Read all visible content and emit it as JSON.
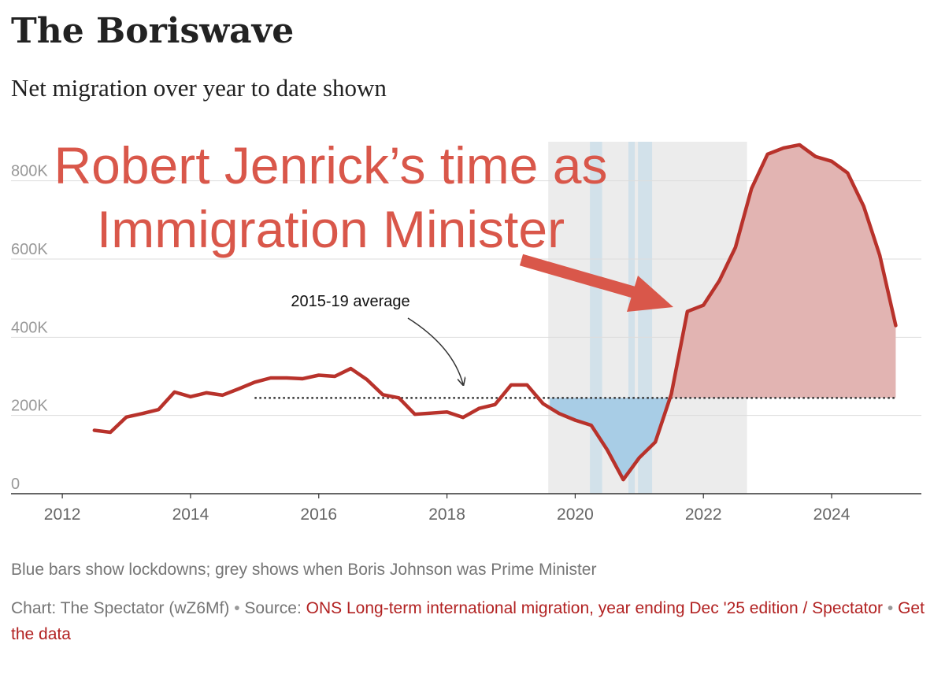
{
  "header": {
    "title": "The Boriswave",
    "subtitle": "Net migration over year to date shown"
  },
  "annotation": {
    "callout": [
      "Robert Jenrick’s time as",
      "Immigration Minister"
    ],
    "average_label": "2015-19 average"
  },
  "footer": {
    "note": "Blue bars show lockdowns; grey shows when Boris Johnson was Prime Minister",
    "chart_credit": "Chart: The Spectator (wZ6Mf)",
    "separator": "•",
    "source_prefix": "Source:",
    "source_link": "ONS Long-term international migration, year ending Dec '25 edition / Spectator",
    "data_link": "Get the data"
  },
  "colors": {
    "line": "#b8322b",
    "above_fill": "#e2b4b2",
    "below_fill": "#a8cde6",
    "pm_shade": "#ececec",
    "lockdown": "#d2e1ea",
    "callout": "#d9574a",
    "gridline": "#dddddd",
    "tick_label": "#999999"
  },
  "chart_data": {
    "type": "area",
    "x_unit": "year",
    "xlim": [
      2011.2,
      2025.4
    ],
    "ylim": [
      0,
      900000
    ],
    "x_ticks": [
      {
        "value": 2012,
        "label": "2012"
      },
      {
        "value": 2014,
        "label": "2014"
      },
      {
        "value": 2016,
        "label": "2016"
      },
      {
        "value": 2018,
        "label": "2018"
      },
      {
        "value": 2020,
        "label": "2020"
      },
      {
        "value": 2022,
        "label": "2022"
      },
      {
        "value": 2024,
        "label": "2024"
      }
    ],
    "y_ticks": [
      {
        "value": 0,
        "label": "0"
      },
      {
        "value": 200000,
        "label": "200K"
      },
      {
        "value": 400000,
        "label": "400K"
      },
      {
        "value": 600000,
        "label": "600K"
      },
      {
        "value": 800000,
        "label": "800K"
      }
    ],
    "grid": true,
    "reference_line": {
      "label": "2015-19 average",
      "value": 245000,
      "x_start": 2015.0,
      "x_end": 2025.0
    },
    "pm_period": {
      "start": 2019.58,
      "end": 2022.68
    },
    "lockdowns": [
      {
        "start": 2020.23,
        "end": 2020.42
      },
      {
        "start": 2020.83,
        "end": 2020.93
      },
      {
        "start": 2020.98,
        "end": 2021.2
      }
    ],
    "series": [
      {
        "x": [
          2012.5,
          2012.75,
          2013.0,
          2013.25,
          2013.5,
          2013.75,
          2014.0,
          2014.25,
          2014.5,
          2014.75,
          2015.0,
          2015.25,
          2015.5,
          2015.75,
          2016.0,
          2016.25,
          2016.5,
          2016.75,
          2017.0,
          2017.25,
          2017.5,
          2017.75,
          2018.0,
          2018.25,
          2018.5,
          2018.75,
          2019.0,
          2019.25,
          2019.5,
          2019.75,
          2020.0,
          2020.25,
          2020.5,
          2020.75,
          2021.0,
          2021.25,
          2021.5,
          2021.75,
          2022.0,
          2022.25,
          2022.5,
          2022.75,
          2023.0,
          2023.25,
          2023.5,
          2023.75,
          2024.0,
          2024.25,
          2024.5,
          2024.75,
          2025.0
        ],
        "values": [
          162000,
          157000,
          196000,
          205000,
          215000,
          260000,
          248000,
          258000,
          252000,
          268000,
          285000,
          296000,
          296000,
          294000,
          303000,
          300000,
          320000,
          292000,
          253000,
          245000,
          203000,
          206000,
          209000,
          195000,
          218000,
          228000,
          278000,
          278000,
          230000,
          205000,
          188000,
          175000,
          112000,
          36000,
          92000,
          132000,
          255000,
          466000,
          482000,
          545000,
          630000,
          780000,
          868000,
          884000,
          892000,
          862000,
          850000,
          820000,
          735000,
          610000,
          430000
        ]
      }
    ]
  }
}
